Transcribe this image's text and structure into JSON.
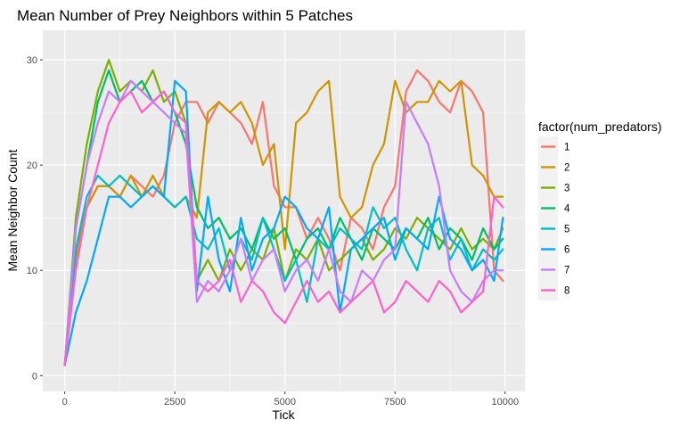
{
  "chart_data": {
    "type": "line",
    "title": "Mean Number of Prey Neighbors within 5 Patches",
    "xlabel": "Tick",
    "ylabel": "Mean Neighbor Count",
    "xlim": [
      -500,
      10450
    ],
    "ylim": [
      -1.5,
      32.8
    ],
    "x_ticks": [
      0,
      2500,
      5000,
      7500,
      10000
    ],
    "x_tick_labels": [
      "0",
      "2500",
      "5000",
      "7500",
      "10000"
    ],
    "y_ticks": [
      0,
      10,
      20,
      30
    ],
    "y_tick_labels": [
      "0",
      "10",
      "20",
      "30"
    ],
    "grid": true,
    "legend": {
      "title": "factor(num_predators)",
      "position": "right"
    },
    "series": [
      {
        "name": "1",
        "color": "#F8766D",
        "x": [
          0,
          250,
          500,
          750,
          1000,
          1250,
          1500,
          1750,
          2000,
          2250,
          2500,
          2750,
          3000,
          3250,
          3500,
          3750,
          4000,
          4250,
          4500,
          4750,
          5000,
          5250,
          5500,
          5750,
          6000,
          6250,
          6500,
          6750,
          7000,
          7250,
          7500,
          7750,
          8000,
          8250,
          8500,
          8750,
          9000,
          9250,
          9500,
          9750,
          9950
        ],
        "y": [
          1,
          12,
          16,
          18,
          18,
          17,
          19,
          18,
          17,
          19,
          24,
          26,
          26,
          24,
          26,
          25,
          24,
          22,
          26,
          18,
          16,
          16,
          13,
          15,
          13,
          10,
          15,
          14,
          12,
          16,
          18,
          27,
          29,
          28,
          26,
          25,
          28,
          27,
          25,
          10,
          9
        ]
      },
      {
        "name": "2",
        "color": "#CD9600",
        "x": [
          0,
          250,
          500,
          750,
          1000,
          1250,
          1500,
          1750,
          2000,
          2250,
          2500,
          2750,
          3000,
          3250,
          3500,
          3750,
          4000,
          4250,
          4500,
          4750,
          5000,
          5250,
          5500,
          5750,
          6000,
          6250,
          6500,
          6750,
          7000,
          7250,
          7500,
          7750,
          8000,
          8250,
          8500,
          8750,
          9000,
          9250,
          9500,
          9750,
          9950
        ],
        "y": [
          1,
          11,
          16,
          18,
          18,
          17,
          19,
          17,
          19,
          17,
          16,
          17,
          15,
          25,
          26,
          25,
          26,
          24,
          20,
          22,
          12,
          24,
          25,
          27,
          28,
          17,
          15,
          16,
          20,
          22,
          28,
          25,
          26,
          26,
          28,
          27,
          28,
          20,
          19,
          17,
          17
        ]
      },
      {
        "name": "3",
        "color": "#7CAE00",
        "x": [
          0,
          250,
          500,
          750,
          1000,
          1250,
          1500,
          1750,
          2000,
          2250,
          2500,
          2750,
          3000,
          3250,
          3500,
          3750,
          4000,
          4250,
          4500,
          4750,
          5000,
          5250,
          5500,
          5750,
          6000,
          6250,
          6500,
          6750,
          7000,
          7250,
          7500,
          7750,
          8000,
          8250,
          8500,
          8750,
          9000,
          9250,
          9500,
          9750,
          9950
        ],
        "y": [
          1,
          15,
          22,
          27,
          30,
          27,
          28,
          27,
          29,
          26,
          27,
          24,
          9,
          11,
          9,
          12,
          10,
          12,
          11,
          14,
          9,
          12,
          11,
          13,
          10,
          11,
          12,
          13,
          11,
          12,
          14,
          13,
          15,
          14,
          13,
          12,
          14,
          12,
          13,
          12,
          14
        ]
      },
      {
        "name": "4",
        "color": "#00BE67",
        "x": [
          0,
          250,
          500,
          750,
          1000,
          1250,
          1500,
          1750,
          2000,
          2250,
          2500,
          2750,
          3000,
          3250,
          3500,
          3750,
          4000,
          4250,
          4500,
          4750,
          5000,
          5250,
          5500,
          5750,
          6000,
          6250,
          6500,
          6750,
          7000,
          7250,
          7500,
          7750,
          8000,
          8250,
          8500,
          8750,
          9000,
          9250,
          9500,
          9750,
          9950
        ],
        "y": [
          1,
          14,
          20,
          26,
          29,
          26,
          27,
          28,
          26,
          27,
          25,
          22,
          16,
          14,
          15,
          13,
          14,
          12,
          15,
          13,
          14,
          11,
          13,
          14,
          12,
          15,
          13,
          11,
          14,
          13,
          12,
          14,
          13,
          15,
          12,
          14,
          13,
          11,
          14,
          12,
          13
        ]
      },
      {
        "name": "5",
        "color": "#00BFC4",
        "x": [
          0,
          250,
          500,
          750,
          1000,
          1250,
          1500,
          1750,
          2000,
          2250,
          2500,
          2750,
          3000,
          3250,
          3500,
          3750,
          4000,
          4250,
          4500,
          4750,
          5000,
          5250,
          5500,
          5750,
          6000,
          6250,
          6500,
          6750,
          7000,
          7250,
          7500,
          7750,
          8000,
          8250,
          8500,
          8750,
          9000,
          9250,
          9500,
          9750,
          9950
        ],
        "y": [
          1,
          12,
          17,
          19,
          18,
          19,
          18,
          17,
          18,
          17,
          16,
          17,
          13,
          12,
          14,
          10,
          13,
          11,
          15,
          12,
          9,
          11,
          7,
          13,
          12,
          14,
          13,
          12,
          16,
          14,
          15,
          12,
          10,
          14,
          15,
          11,
          13,
          10,
          12,
          11,
          12
        ]
      },
      {
        "name": "6",
        "color": "#00A9FF",
        "x": [
          0,
          250,
          500,
          750,
          1000,
          1250,
          1500,
          1750,
          2000,
          2250,
          2500,
          2750,
          3000,
          3250,
          3500,
          3750,
          4000,
          4250,
          4500,
          4750,
          5000,
          5250,
          5500,
          5750,
          6000,
          6250,
          6500,
          6750,
          7000,
          7250,
          7500,
          7750,
          8000,
          8250,
          8500,
          8750,
          9000,
          9250,
          9500,
          9750,
          9950
        ],
        "y": [
          1,
          6,
          9,
          13,
          17,
          17,
          16,
          17,
          18,
          17,
          28,
          27,
          8,
          17,
          11,
          8,
          15,
          10,
          13,
          14,
          17,
          16,
          14,
          13,
          16,
          6,
          12,
          13,
          14,
          15,
          11,
          14,
          13,
          12,
          17,
          13,
          12,
          10,
          11,
          9,
          15
        ]
      },
      {
        "name": "7",
        "color": "#C77CFF",
        "x": [
          0,
          250,
          500,
          750,
          1000,
          1250,
          1500,
          1750,
          2000,
          2250,
          2500,
          2750,
          3000,
          3250,
          3500,
          3750,
          4000,
          4250,
          4500,
          4750,
          5000,
          5250,
          5500,
          5750,
          6000,
          6250,
          6500,
          6750,
          7000,
          7250,
          7500,
          7750,
          8000,
          8250,
          8500,
          8750,
          9000,
          9250,
          9500,
          9750,
          9950
        ],
        "y": [
          1,
          14,
          20,
          24,
          27,
          26,
          28,
          27,
          26,
          25,
          24,
          23,
          7,
          9,
          8,
          10,
          13,
          9,
          11,
          12,
          8,
          10,
          11,
          9,
          12,
          8,
          7,
          10,
          9,
          11,
          12,
          26,
          24,
          22,
          18,
          10,
          8,
          7,
          9,
          10,
          10
        ]
      },
      {
        "name": "8",
        "color": "#FF61CC",
        "x": [
          0,
          250,
          500,
          750,
          1000,
          1250,
          1500,
          1750,
          2000,
          2250,
          2500,
          2750,
          3000,
          3250,
          3500,
          3750,
          4000,
          4250,
          4500,
          4750,
          5000,
          5250,
          5500,
          5750,
          6000,
          6250,
          6500,
          6750,
          7000,
          7250,
          7500,
          7750,
          8000,
          8250,
          8500,
          8750,
          9000,
          9250,
          9500,
          9750,
          9950
        ],
        "y": [
          1,
          10,
          16,
          20,
          24,
          26,
          27,
          25,
          26,
          27,
          25,
          24,
          9,
          8,
          9,
          11,
          7,
          9,
          8,
          6,
          5,
          7,
          9,
          7,
          8,
          6,
          7,
          8,
          9,
          6,
          7,
          9,
          8,
          7,
          9,
          8,
          6,
          7,
          8,
          17,
          16
        ]
      }
    ]
  }
}
